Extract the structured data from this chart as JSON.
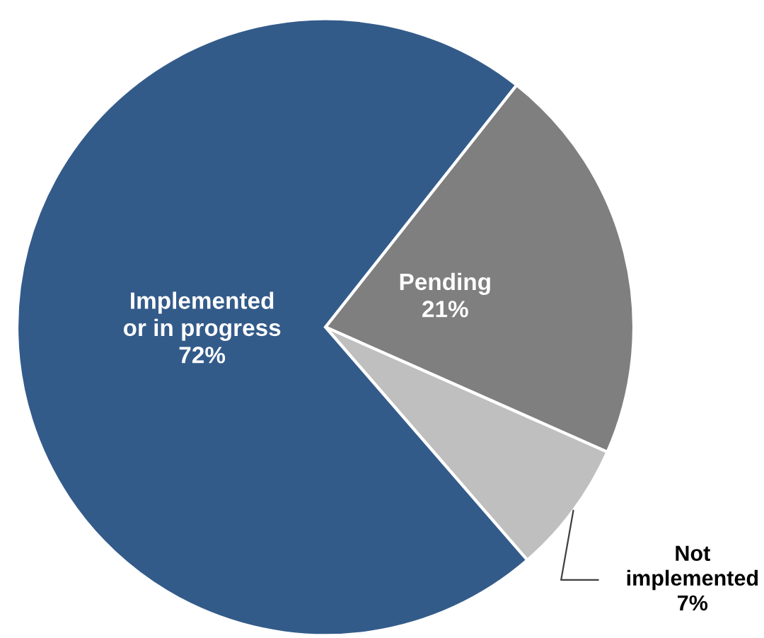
{
  "chart_data": {
    "type": "pie",
    "categories": [
      "Pending",
      "Not\nimplemented",
      "Implemented\nor in progress"
    ],
    "values": [
      21,
      7,
      72
    ],
    "value_labels": [
      "21%",
      "7%",
      "72%"
    ],
    "colors": [
      "#7f7f7f",
      "#bfbfbf",
      "#335b8a"
    ]
  }
}
